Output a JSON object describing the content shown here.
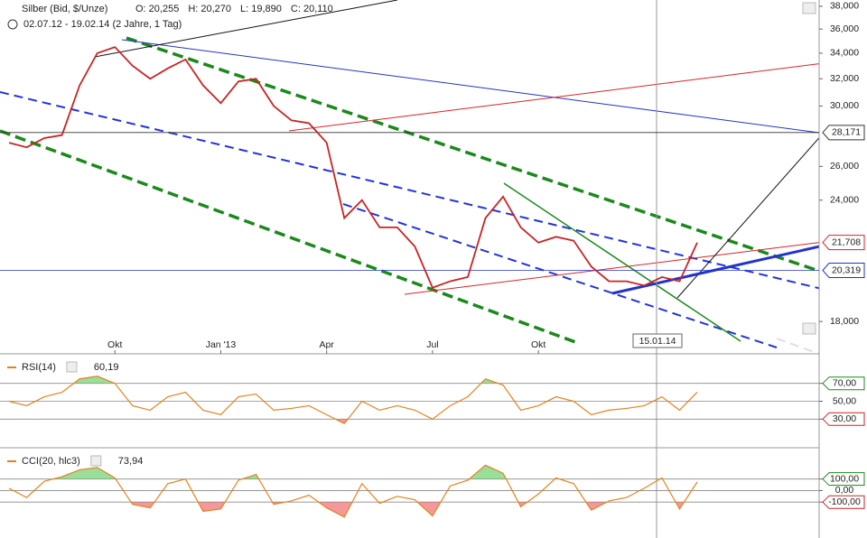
{
  "chart_data": [
    {
      "type": "line",
      "title": "Silber (Bid, $/Unze)",
      "legend_values": [
        "O: 20,255",
        "H: 20,270",
        "L: 19,890",
        "C: 20,110"
      ],
      "subtitle": "02.07.12 - 19.02.14 (2 Jahre, 1 Tag)",
      "categories": [
        null,
        null,
        null,
        null,
        null,
        null,
        "Okt",
        null,
        null,
        null,
        null,
        null,
        "Jan '13",
        null,
        null,
        null,
        null,
        null,
        "Apr",
        null,
        null,
        null,
        null,
        null,
        "Jul",
        null,
        null,
        null,
        null,
        null,
        "Okt",
        null,
        null,
        null,
        null,
        null,
        null,
        null,
        null,
        null
      ],
      "values": [
        27.5,
        27.2,
        27.8,
        28.0,
        31.5,
        34.0,
        34.5,
        33.0,
        32.0,
        32.8,
        33.5,
        31.5,
        30.2,
        31.8,
        32.0,
        30.0,
        29.0,
        28.8,
        27.5,
        23.0,
        24.0,
        22.5,
        22.5,
        21.5,
        19.5,
        19.8,
        20.0,
        23.0,
        24.2,
        22.5,
        21.7,
        22.0,
        21.8,
        20.5,
        19.8,
        19.8,
        19.6,
        20.0,
        19.8,
        21.7
      ],
      "color": "#cc2222",
      "log": true,
      "ylim": [
        16.67,
        38.57
      ],
      "yticks": [
        {
          "value": 38,
          "label": "38,000"
        },
        {
          "value": 36,
          "label": "36,000"
        },
        {
          "value": 34,
          "label": "34,000"
        },
        {
          "value": 32,
          "label": "32,000"
        },
        {
          "value": 30,
          "label": "30,000"
        },
        {
          "value": 26,
          "label": "26,000"
        },
        {
          "value": 24,
          "label": "24,000"
        },
        {
          "value": 18,
          "label": "18,000"
        }
      ],
      "levels": [
        {
          "value": 28.171,
          "label": "28,171",
          "color": "#333333"
        },
        {
          "value": 21.708,
          "label": "21,708",
          "color": "#dd2222"
        },
        {
          "value": 20.319,
          "label": "20,319",
          "color": "#2233cc"
        }
      ],
      "crosshair": "15.01.14"
    },
    {
      "type": "line",
      "title": "RSI(14)",
      "last_label": "60,19",
      "values": [
        50,
        45,
        55,
        60,
        75,
        78,
        70,
        45,
        40,
        55,
        60,
        40,
        35,
        55,
        58,
        40,
        42,
        45,
        35,
        25,
        50,
        40,
        45,
        40,
        30,
        45,
        55,
        75,
        68,
        40,
        45,
        55,
        50,
        35,
        40,
        42,
        45,
        55,
        40,
        60.19
      ],
      "color": "#e8801a",
      "ylim": [
        0,
        100
      ],
      "yticks": [
        {
          "value": 70,
          "label": "70,00"
        },
        {
          "value": 50,
          "label": "50,00"
        },
        {
          "value": 30,
          "label": "30,00"
        }
      ],
      "upper": 70,
      "lower": 30
    },
    {
      "type": "line",
      "title": "CCI(20, hlc3)",
      "last_label": "73,94",
      "values": [
        20,
        -60,
        80,
        120,
        180,
        200,
        110,
        -120,
        -150,
        60,
        100,
        -180,
        -160,
        90,
        140,
        -120,
        -90,
        -40,
        -150,
        -230,
        60,
        -110,
        -50,
        -80,
        -220,
        40,
        90,
        220,
        150,
        -140,
        -30,
        110,
        60,
        -170,
        -90,
        -60,
        20,
        110,
        -160,
        73.94
      ],
      "color": "#e8801a",
      "ylim": [
        -396,
        348
      ],
      "yticks": [
        {
          "value": 100,
          "label": "100,00"
        },
        {
          "value": 0,
          "label": "0,00"
        },
        {
          "value": -100,
          "label": "-100,00"
        }
      ],
      "upper": 100,
      "lower": -100
    }
  ]
}
